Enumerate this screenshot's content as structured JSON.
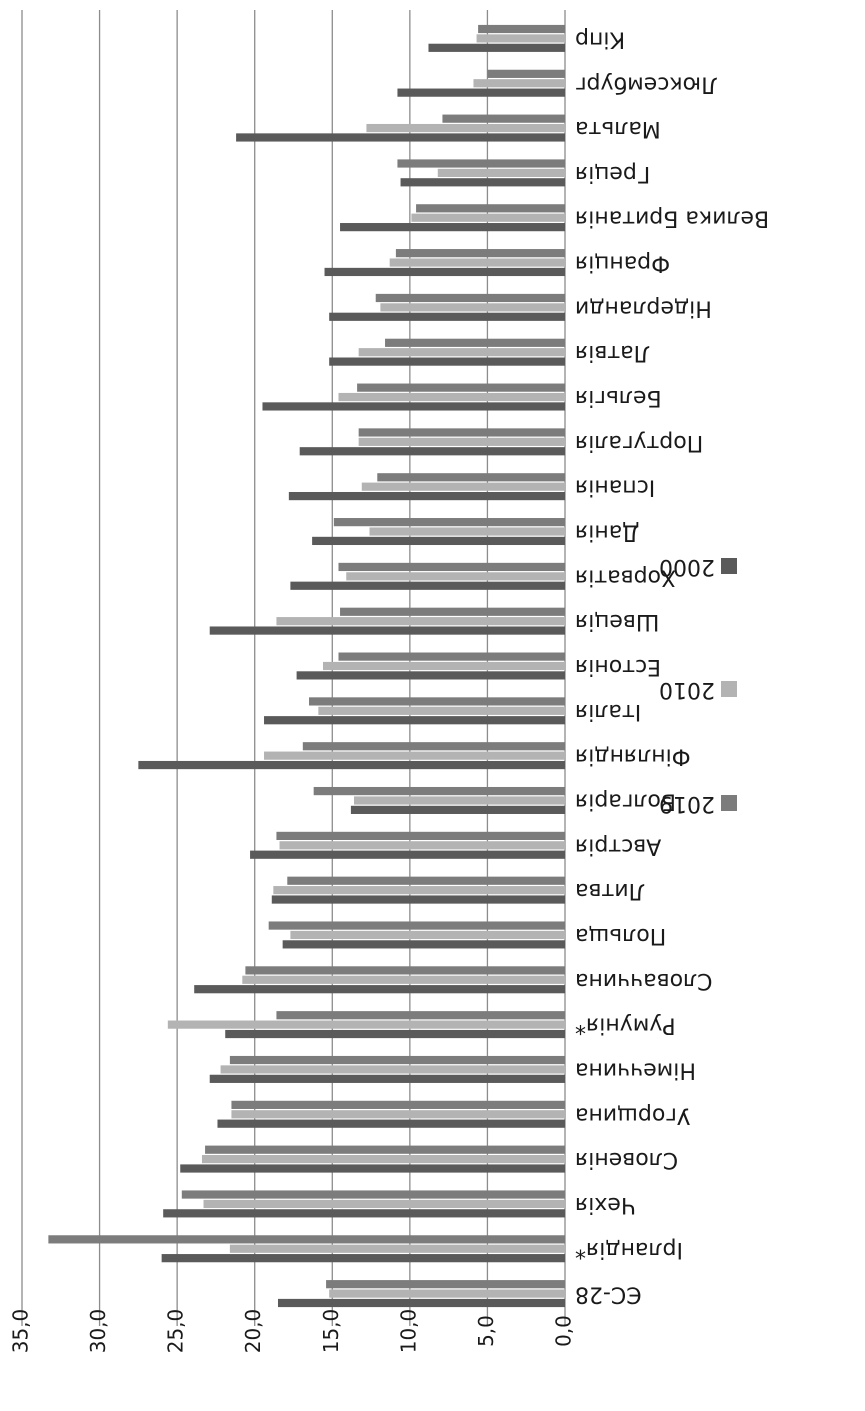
{
  "chart_data": {
    "type": "bar",
    "orientation": "horizontal",
    "rotated_180": true,
    "title": "",
    "xlabel": "",
    "ylabel": "",
    "ylim": [
      0,
      35
    ],
    "grid": true,
    "legend_position": "right",
    "ticks": [
      "0,0",
      "5,0",
      "10,0",
      "15,0",
      "20,0",
      "25,0",
      "30,0",
      "35,0"
    ],
    "tick_values": [
      0,
      5,
      10,
      15,
      20,
      25,
      30,
      35
    ],
    "categories": [
      "ЄС-28",
      "Ірландія*",
      "Чехія",
      "Словенія",
      "Угорщина",
      "Німеччина",
      "Румунія*",
      "Словаччина",
      "Польща",
      "Литва",
      "Австрія",
      "Болгарія",
      "Фінляндія",
      "Італія",
      "Естонія",
      "Швеція",
      "Хорватія",
      "Данія",
      "Іспанія",
      "Португалія",
      "Бельгія",
      "Латвія",
      "Нідерланди",
      "Франція",
      "Велика Британія",
      "Греція",
      "Мальта",
      "Люксембург",
      "Кіпр"
    ],
    "series": [
      {
        "name": "2000",
        "color": "#5a5a5a",
        "values": [
          18.5,
          26.0,
          25.9,
          24.8,
          22.4,
          22.9,
          21.9,
          23.9,
          18.2,
          18.9,
          20.3,
          13.8,
          27.5,
          19.4,
          17.3,
          22.9,
          17.7,
          16.3,
          17.8,
          17.1,
          19.5,
          15.2,
          15.2,
          15.5,
          14.5,
          10.6,
          21.2,
          10.8,
          8.8
        ]
      },
      {
        "name": "2010",
        "color": "#b3b3b3",
        "values": [
          15.2,
          21.6,
          23.3,
          23.4,
          21.5,
          22.2,
          25.6,
          20.8,
          17.7,
          18.8,
          18.4,
          13.6,
          19.4,
          15.9,
          15.6,
          18.6,
          14.1,
          12.6,
          13.1,
          13.3,
          14.6,
          13.3,
          11.9,
          11.3,
          9.9,
          8.2,
          12.8,
          5.9,
          5.7
        ]
      },
      {
        "name": "2019",
        "color": "#7c7c7c",
        "values": [
          15.4,
          33.3,
          24.7,
          23.2,
          21.5,
          21.6,
          18.6,
          20.6,
          19.1,
          17.9,
          18.6,
          16.2,
          16.9,
          16.5,
          14.6,
          14.5,
          14.6,
          14.9,
          12.1,
          13.3,
          13.4,
          11.6,
          12.2,
          10.9,
          9.6,
          10.8,
          7.9,
          5.0,
          5.6
        ]
      }
    ]
  }
}
